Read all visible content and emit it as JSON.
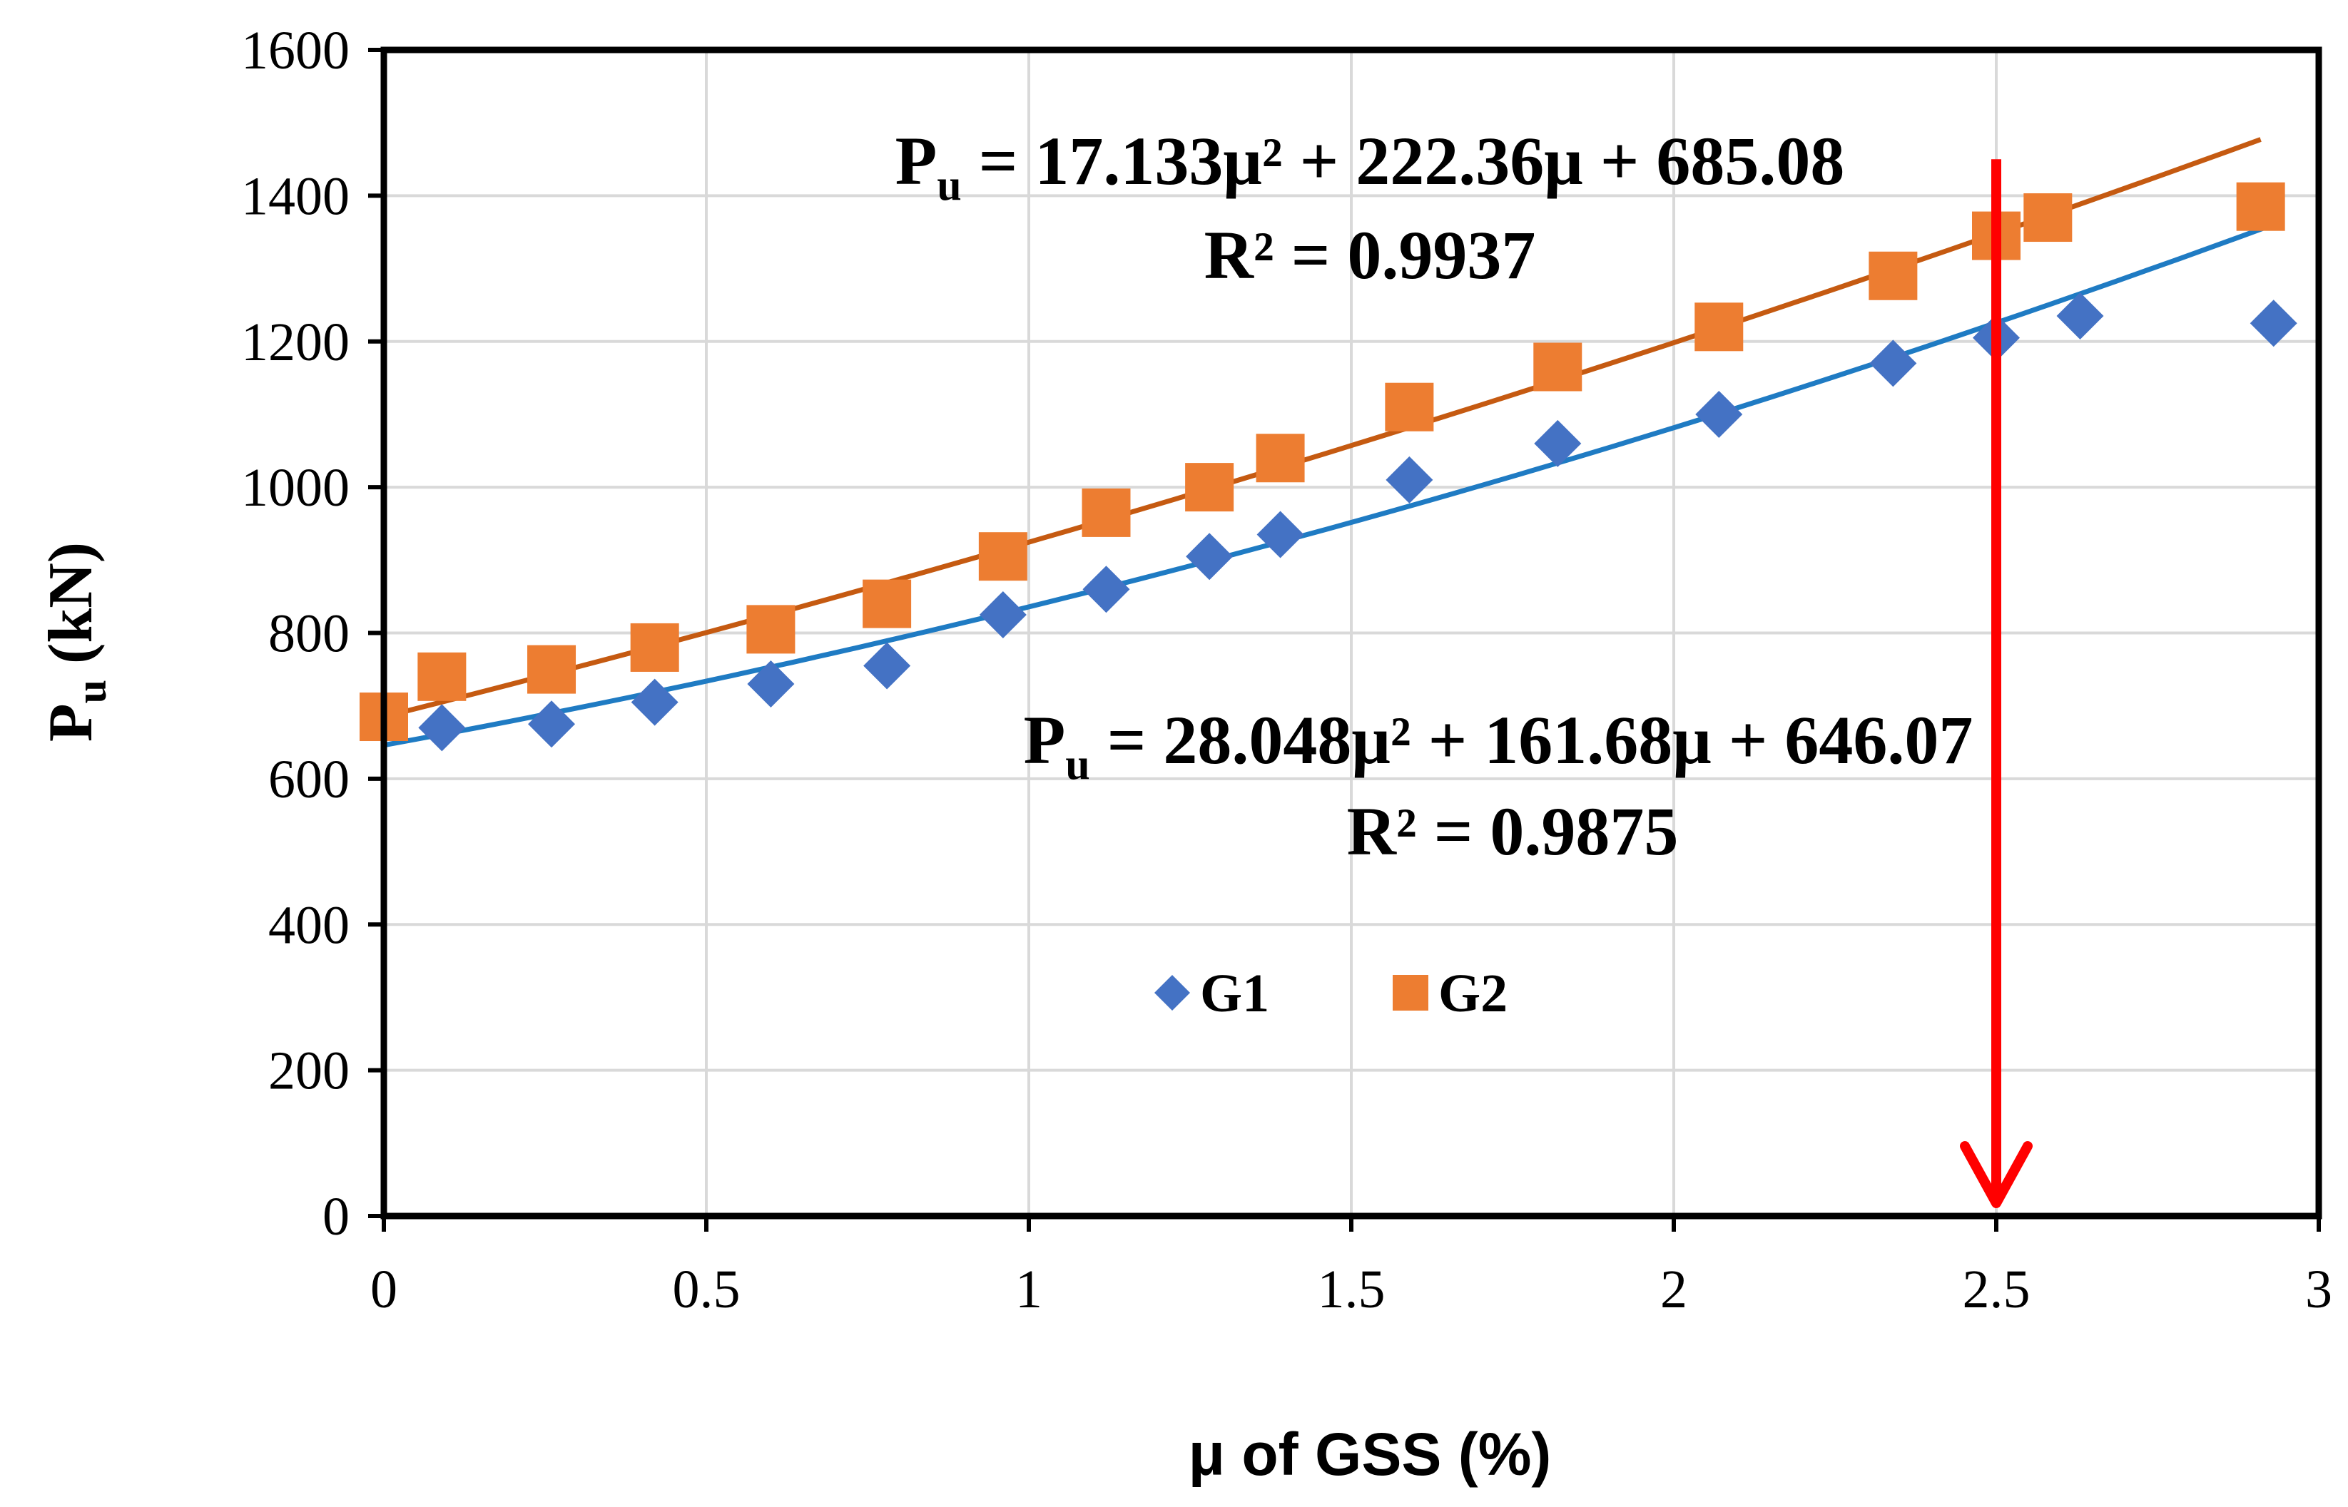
{
  "chart_data": {
    "type": "scatter",
    "title": "",
    "xlabel": "μ of GSS (%)",
    "ylabel": {
      "main": "P",
      "sub": "u",
      "rest": " (kN)"
    },
    "xlim": [
      0,
      3
    ],
    "ylim": [
      0,
      1600
    ],
    "x_ticks": [
      "0",
      "0.5",
      "1",
      "1.5",
      "2",
      "2.5",
      "3"
    ],
    "y_ticks": [
      "0",
      "200",
      "400",
      "600",
      "800",
      "1000",
      "1200",
      "1400",
      "1600"
    ],
    "grid": true,
    "legend_position": "center",
    "series": [
      {
        "name": "G1",
        "marker": "diamond",
        "color": "#4472c4",
        "trend_color": "#1f7bc3",
        "x": [
          0.09,
          0.26,
          0.42,
          0.6,
          0.78,
          0.96,
          1.12,
          1.28,
          1.39,
          1.59,
          1.82,
          2.07,
          2.34,
          2.5,
          2.63,
          2.93
        ],
        "y": [
          670,
          675,
          705,
          730,
          755,
          825,
          860,
          905,
          935,
          1010,
          1060,
          1100,
          1170,
          1205,
          1235,
          1225
        ],
        "trendline": {
          "a": 28.048,
          "b": 161.68,
          "c": 646.07,
          "x_range": [
            0,
            2.93
          ],
          "equation": {
            "lhs": "P",
            "sub": "u",
            "rest": " = 28.048μ² + 161.68μ + 646.07"
          },
          "r2": "R² = 0.9875"
        }
      },
      {
        "name": "G2",
        "marker": "square",
        "color": "#ed7d31",
        "trend_color": "#c55a11",
        "x": [
          0.0,
          0.09,
          0.26,
          0.42,
          0.6,
          0.78,
          0.96,
          1.12,
          1.28,
          1.39,
          1.59,
          1.82,
          2.07,
          2.34,
          2.5,
          2.58,
          2.91
        ],
        "y": [
          685,
          740,
          750,
          780,
          805,
          840,
          905,
          965,
          1000,
          1040,
          1110,
          1165,
          1220,
          1290,
          1345,
          1370,
          1385
        ],
        "trendline": {
          "a": 17.133,
          "b": 222.36,
          "c": 685.08,
          "x_range": [
            0,
            2.91
          ],
          "equation": {
            "lhs": "P",
            "sub": "u",
            "rest": " = 17.133μ² + 222.36μ + 685.08"
          },
          "r2": "R² = 0.9937"
        }
      }
    ],
    "annotation_arrow": {
      "x": 2.5,
      "y_start": 1450,
      "y_end": 0,
      "color": "#ff0000"
    }
  }
}
